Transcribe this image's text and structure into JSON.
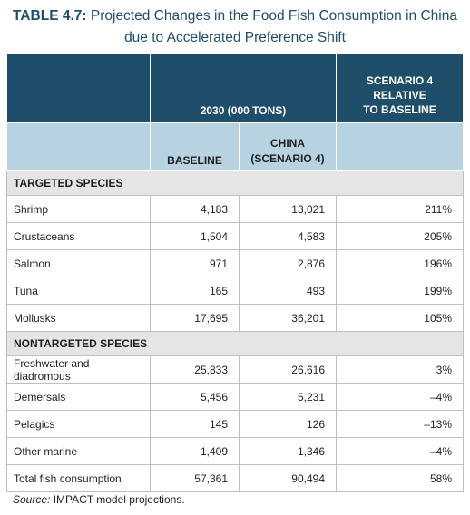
{
  "title": {
    "label": "TABLE 4.7:",
    "text": "Projected Changes in the Food Fish Consumption in China due to Accelerated Preference Shift"
  },
  "table": {
    "header": {
      "group": "2030 (000 TONS)",
      "ratio": [
        "SCENARIO 4",
        "RELATIVE",
        "TO BASELINE"
      ],
      "baseline": "BASELINE",
      "china": [
        "CHINA",
        "(SCENARIO 4)"
      ]
    },
    "sections": [
      {
        "name": "TARGETED SPECIES",
        "rows": [
          [
            "Shrimp",
            "4,183",
            "13,021",
            "211%"
          ],
          [
            "Crustaceans",
            "1,504",
            "4,583",
            "205%"
          ],
          [
            "Salmon",
            "971",
            "2,876",
            "196%"
          ],
          [
            "Tuna",
            "165",
            "493",
            "199%"
          ],
          [
            "Mollusks",
            "17,695",
            "36,201",
            "105%"
          ]
        ]
      },
      {
        "name": "NONTARGETED SPECIES",
        "rows": [
          [
            "Freshwater and diadromous",
            "25,833",
            "26,616",
            "3%"
          ],
          [
            "Demersals",
            "5,456",
            "5,231",
            "–4%"
          ],
          [
            "Pelagics",
            "145",
            "126",
            "–13%"
          ],
          [
            "Other marine",
            "1,409",
            "1,346",
            "–4%"
          ],
          [
            "Total fish consumption",
            "57,361",
            "90,494",
            "58%"
          ]
        ]
      }
    ]
  },
  "footer": {
    "label": "Source:",
    "text": "IMPACT model projections."
  }
}
